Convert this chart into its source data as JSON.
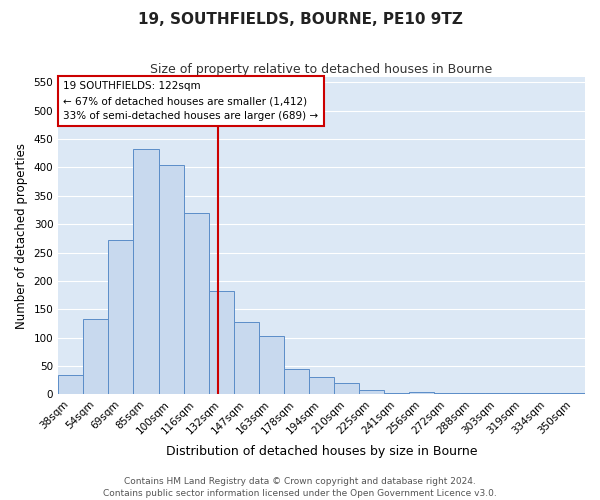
{
  "title": "19, SOUTHFIELDS, BOURNE, PE10 9TZ",
  "subtitle": "Size of property relative to detached houses in Bourne",
  "xlabel": "Distribution of detached houses by size in Bourne",
  "ylabel": "Number of detached properties",
  "bin_labels": [
    "38sqm",
    "54sqm",
    "69sqm",
    "85sqm",
    "100sqm",
    "116sqm",
    "132sqm",
    "147sqm",
    "163sqm",
    "178sqm",
    "194sqm",
    "210sqm",
    "225sqm",
    "241sqm",
    "256sqm",
    "272sqm",
    "288sqm",
    "303sqm",
    "319sqm",
    "334sqm",
    "350sqm"
  ],
  "bar_heights": [
    35,
    133,
    272,
    433,
    405,
    320,
    183,
    127,
    103,
    45,
    30,
    20,
    8,
    3,
    4,
    3,
    3,
    2,
    2,
    2,
    2
  ],
  "bar_color": "#c8d9ee",
  "bar_edge_color": "#5b8dc8",
  "vline_color": "#cc0000",
  "ylim": [
    0,
    560
  ],
  "yticks": [
    0,
    50,
    100,
    150,
    200,
    250,
    300,
    350,
    400,
    450,
    500,
    550
  ],
  "annotation_title": "19 SOUTHFIELDS: 122sqm",
  "annotation_line1": "← 67% of detached houses are smaller (1,412)",
  "annotation_line2": "33% of semi-detached houses are larger (689) →",
  "annotation_box_color": "#cc0000",
  "footer_line1": "Contains HM Land Registry data © Crown copyright and database right 2024.",
  "footer_line2": "Contains public sector information licensed under the Open Government Licence v3.0.",
  "fig_bg_color": "#ffffff",
  "plot_bg_color": "#dce8f5",
  "grid_color": "#ffffff",
  "title_fontsize": 11,
  "subtitle_fontsize": 9,
  "axis_label_fontsize": 8.5,
  "tick_fontsize": 7.5,
  "annotation_fontsize": 7.5,
  "footer_fontsize": 6.5
}
